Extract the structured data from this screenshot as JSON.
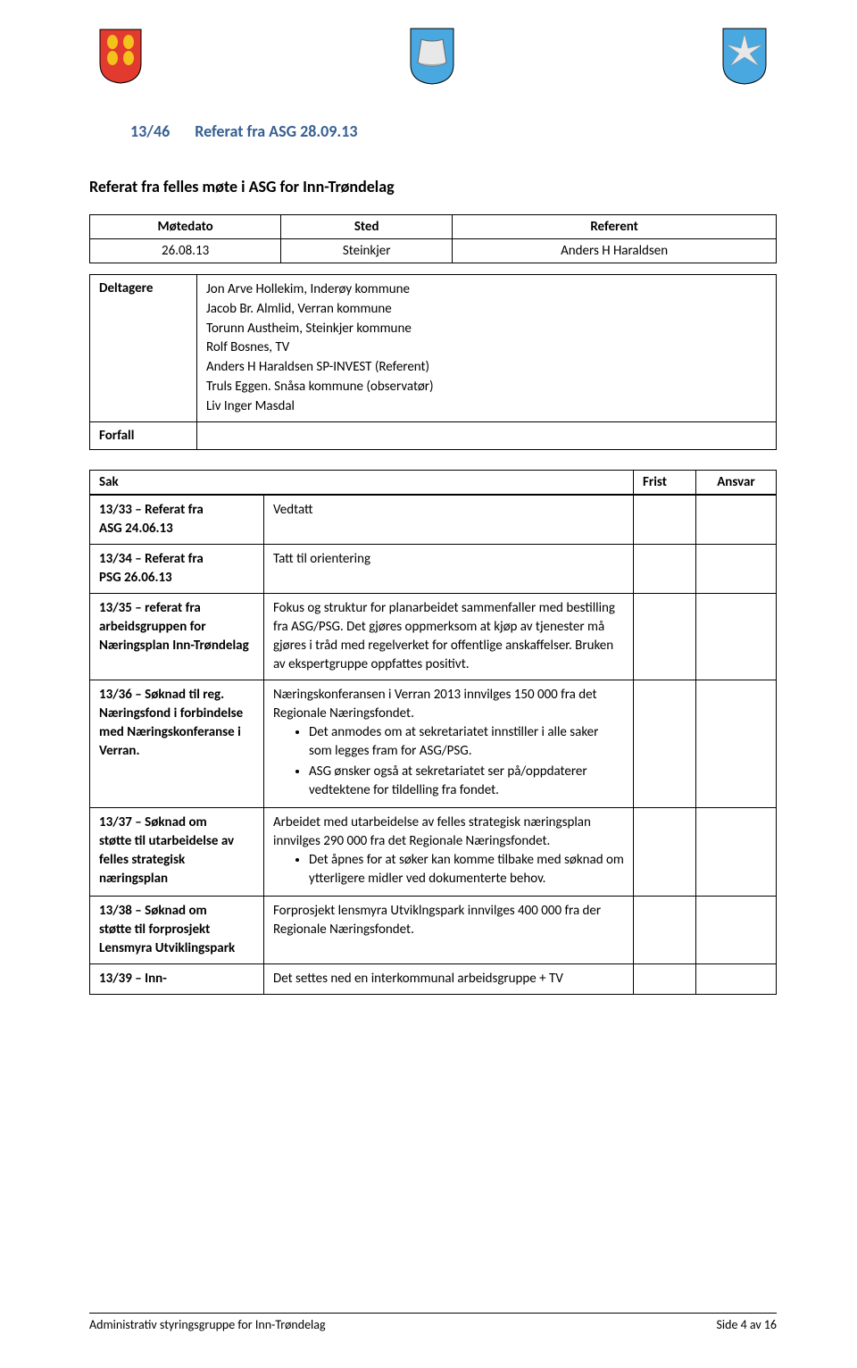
{
  "header": {
    "shield_left_bg": "#e23a2e",
    "shield_left_accent": "#f3c21b",
    "shield_mid_right_bg": "#4aa8e0"
  },
  "title": {
    "number": "13/46",
    "text": "Referat fra ASG 28.09.13"
  },
  "subtitle": "Referat fra felles møte i ASG for Inn-Trøndelag",
  "meta": {
    "col_motedato": "Møtedato",
    "col_sted": "Sted",
    "col_referent": "Referent",
    "motedato": "26.08.13",
    "sted": "Steinkjer",
    "referent": "Anders H Haraldsen"
  },
  "participants": {
    "deltagere_label": "Deltagere",
    "forfall_label": "Forfall",
    "deltagere": [
      "Jon Arve Hollekim, Inderøy kommune",
      "Jacob Br. Almlid, Verran kommune",
      "Torunn Austheim, Steinkjer kommune",
      "Rolf Bosnes, TV",
      "Anders H Haraldsen SP-INVEST (Referent)",
      "Truls Eggen. Snåsa kommune (observatør)",
      "Liv Inger Masdal"
    ],
    "forfall": ""
  },
  "sak_header": {
    "sak": "Sak",
    "frist": "Frist",
    "ansvar": "Ansvar"
  },
  "rows": [
    {
      "id": "13/33 – Referat fra",
      "sub": "ASG 24.06.13",
      "body_plain": "Vedtatt"
    },
    {
      "id": "13/34 – Referat fra",
      "sub": "PSG 26.06.13",
      "body_plain": "Tatt til orientering"
    },
    {
      "id": "13/35 – referat fra",
      "sub": "arbeidsgruppen for Næringsplan Inn-Trøndelag",
      "body_plain": "Fokus og struktur for planarbeidet sammenfaller med bestilling fra ASG/PSG. Det gjøres oppmerksom at kjøp av tjenester må gjøres i tråd med regelverket for offentlige anskaffelser. Bruken av ekspertgruppe oppfattes positivt."
    },
    {
      "id": "13/36 – Søknad til reg.",
      "sub": "Næringsfond i forbindelse med Næringskonferanse i Verran.",
      "body_intro": "Næringskonferansen i Verran 2013 innvilges 150 000 fra det Regionale Næringsfondet.",
      "bullets": [
        "Det anmodes om at sekretariatet innstiller i alle saker som legges fram for ASG/PSG.",
        "ASG ønsker også at sekretariatet ser på/oppdaterer vedtektene for tildelling fra fondet."
      ]
    },
    {
      "id": "13/37 – Søknad om",
      "sub": "støtte til utarbeidelse av felles strategisk næringsplan",
      "body_intro": "Arbeidet med utarbeidelse av felles strategisk næringsplan innvilges 290 000 fra det Regionale Næringsfondet.",
      "bullets": [
        "Det åpnes for at søker kan komme tilbake med søknad om ytterligere midler ved dokumenterte behov."
      ]
    },
    {
      "id": "13/38 – Søknad om",
      "sub": "støtte til forprosjekt Lensmyra Utviklingspark",
      "body_plain": "Forprosjekt lensmyra Utviklngspark innvilges 400 000 fra der Regionale Næringsfondet."
    },
    {
      "id": "13/39 – Inn-",
      "sub": "",
      "body_plain": "Det settes ned en interkommunal arbeidsgruppe + TV"
    }
  ],
  "footer": {
    "left": "Administrativ styringsgruppe for Inn-Trøndelag",
    "right": "Side 4 av 16"
  }
}
